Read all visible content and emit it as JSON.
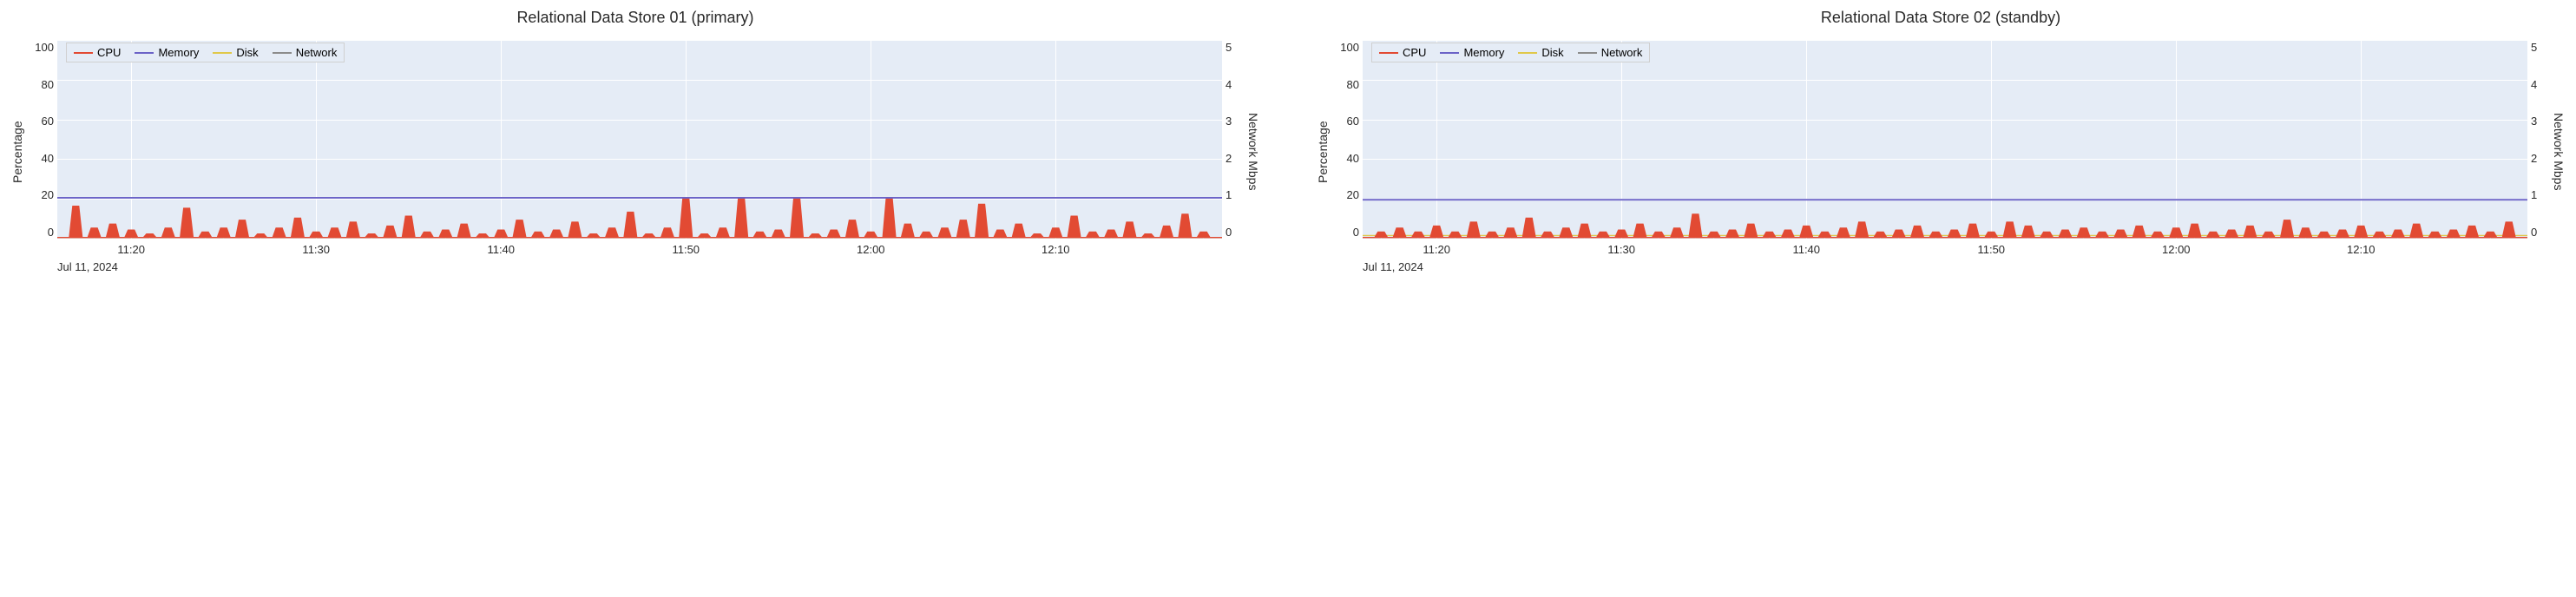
{
  "date_label": "Jul 11, 2024",
  "y_left_label": "Percentage",
  "y_right_label": "Network Mbps",
  "y_left": {
    "min": 0,
    "max": 100,
    "ticks": [
      0,
      20,
      40,
      60,
      80,
      100
    ]
  },
  "y_right": {
    "min": 0,
    "max": 5.3,
    "ticks": [
      0,
      1,
      2,
      3,
      4,
      5
    ]
  },
  "x_ticks": [
    "11:20",
    "11:30",
    "11:40",
    "11:50",
    "12:00",
    "12:10"
  ],
  "x_range_minutes": [
    16,
    79
  ],
  "legend": [
    {
      "label": "CPU",
      "color": "#e24a33"
    },
    {
      "label": "Memory",
      "color": "#6b63c7"
    },
    {
      "label": "Disk",
      "color": "#e0c84a"
    },
    {
      "label": "Network",
      "color": "#8c8c8c"
    }
  ],
  "colors": {
    "plot_bg": "#e5ecf6",
    "grid": "#ffffff"
  },
  "panels": [
    {
      "title": "Relational Data Store 01 (primary)",
      "memory_pct": 21,
      "cpu_baseline_pct": 1,
      "cpu_spikes": [
        [
          17,
          17
        ],
        [
          18,
          6
        ],
        [
          19,
          8
        ],
        [
          20,
          5
        ],
        [
          21,
          3
        ],
        [
          22,
          6
        ],
        [
          23,
          16
        ],
        [
          24,
          4
        ],
        [
          25,
          6
        ],
        [
          26,
          10
        ],
        [
          27,
          3
        ],
        [
          28,
          6
        ],
        [
          29,
          11
        ],
        [
          30,
          4
        ],
        [
          31,
          6
        ],
        [
          32,
          9
        ],
        [
          33,
          3
        ],
        [
          34,
          7
        ],
        [
          35,
          12
        ],
        [
          36,
          4
        ],
        [
          37,
          5
        ],
        [
          38,
          8
        ],
        [
          39,
          3
        ],
        [
          40,
          5
        ],
        [
          41,
          10
        ],
        [
          42,
          4
        ],
        [
          43,
          5
        ],
        [
          44,
          9
        ],
        [
          45,
          3
        ],
        [
          46,
          6
        ],
        [
          47,
          14
        ],
        [
          48,
          3
        ],
        [
          49,
          6
        ],
        [
          50,
          21
        ],
        [
          51,
          3
        ],
        [
          52,
          6
        ],
        [
          53,
          21
        ],
        [
          54,
          4
        ],
        [
          55,
          5
        ],
        [
          56,
          21
        ],
        [
          57,
          3
        ],
        [
          58,
          5
        ],
        [
          59,
          10
        ],
        [
          60,
          4
        ],
        [
          61,
          21
        ],
        [
          62,
          8
        ],
        [
          63,
          4
        ],
        [
          64,
          6
        ],
        [
          65,
          10
        ],
        [
          66,
          18
        ],
        [
          67,
          5
        ],
        [
          68,
          8
        ],
        [
          69,
          3
        ],
        [
          70,
          6
        ],
        [
          71,
          12
        ],
        [
          72,
          4
        ],
        [
          73,
          5
        ],
        [
          74,
          9
        ],
        [
          75,
          3
        ],
        [
          76,
          7
        ],
        [
          77,
          13
        ],
        [
          78,
          4
        ]
      ],
      "disk_pct": 1.0,
      "network_mbps": 0.05
    },
    {
      "title": "Relational Data Store 02 (standby)",
      "memory_pct": 20,
      "cpu_baseline_pct": 1,
      "cpu_spikes": [
        [
          17,
          4
        ],
        [
          18,
          6
        ],
        [
          19,
          4
        ],
        [
          20,
          7
        ],
        [
          21,
          4
        ],
        [
          22,
          9
        ],
        [
          23,
          4
        ],
        [
          24,
          6
        ],
        [
          25,
          11
        ],
        [
          26,
          4
        ],
        [
          27,
          6
        ],
        [
          28,
          8
        ],
        [
          29,
          4
        ],
        [
          30,
          5
        ],
        [
          31,
          8
        ],
        [
          32,
          4
        ],
        [
          33,
          6
        ],
        [
          34,
          13
        ],
        [
          35,
          4
        ],
        [
          36,
          5
        ],
        [
          37,
          8
        ],
        [
          38,
          4
        ],
        [
          39,
          5
        ],
        [
          40,
          7
        ],
        [
          41,
          4
        ],
        [
          42,
          6
        ],
        [
          43,
          9
        ],
        [
          44,
          4
        ],
        [
          45,
          5
        ],
        [
          46,
          7
        ],
        [
          47,
          4
        ],
        [
          48,
          5
        ],
        [
          49,
          8
        ],
        [
          50,
          4
        ],
        [
          51,
          9
        ],
        [
          52,
          7
        ],
        [
          53,
          4
        ],
        [
          54,
          5
        ],
        [
          55,
          6
        ],
        [
          56,
          4
        ],
        [
          57,
          5
        ],
        [
          58,
          7
        ],
        [
          59,
          4
        ],
        [
          60,
          6
        ],
        [
          61,
          8
        ],
        [
          62,
          4
        ],
        [
          63,
          5
        ],
        [
          64,
          7
        ],
        [
          65,
          4
        ],
        [
          66,
          10
        ],
        [
          67,
          6
        ],
        [
          68,
          4
        ],
        [
          69,
          5
        ],
        [
          70,
          7
        ],
        [
          71,
          4
        ],
        [
          72,
          5
        ],
        [
          73,
          8
        ],
        [
          74,
          4
        ],
        [
          75,
          5
        ],
        [
          76,
          7
        ],
        [
          77,
          4
        ],
        [
          78,
          9
        ]
      ],
      "disk_pct": 2.0,
      "network_mbps": 0.05
    }
  ]
}
